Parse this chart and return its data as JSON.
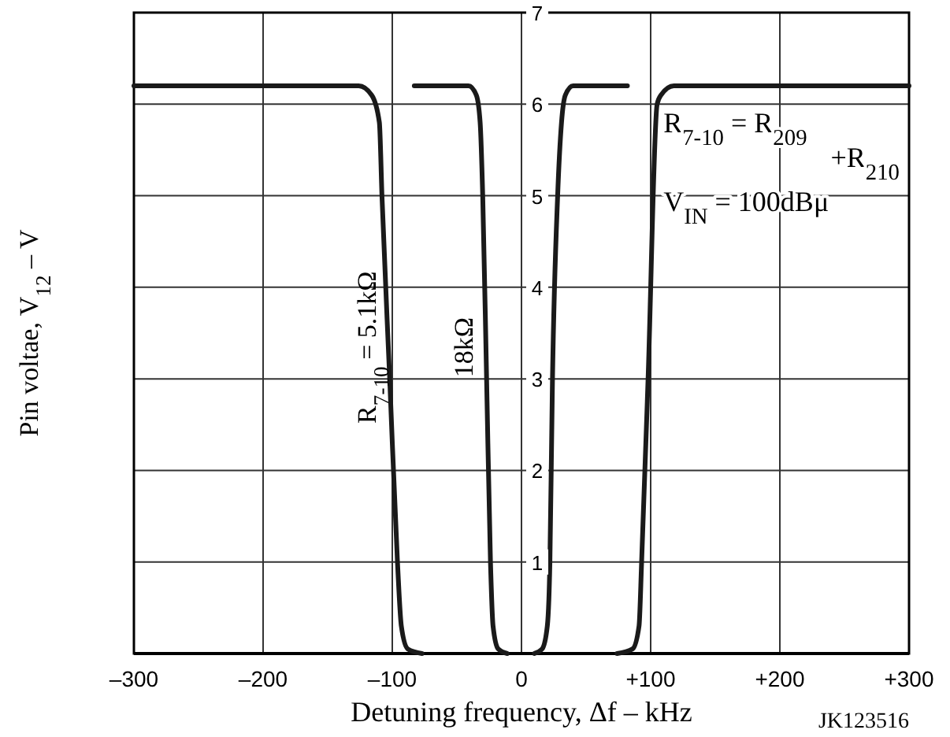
{
  "chart_data": {
    "type": "line",
    "xlabel": "Detuning frequency, Δf – kHz",
    "ylabel": "Pin voltae, V$_{12}$ – V",
    "x": [
      -300,
      -140,
      -126,
      -116,
      -110,
      -108,
      -102,
      -96,
      -93,
      -88,
      -77,
      0,
      74,
      86,
      91,
      93,
      98,
      105,
      108,
      118,
      130,
      300
    ],
    "series": [
      {
        "name": "R$_{7-10}$ = 5.1kΩ",
        "color": "#1a1a1a",
        "values": [
          6.2,
          6.2,
          6.2,
          6.1,
          5.8,
          5,
          3,
          1,
          0.3,
          0.05,
          0,
          null,
          0,
          0.05,
          0.3,
          1,
          3,
          6,
          6.1,
          6.2,
          6.2,
          6.2
        ]
      },
      {
        "name": "18kΩ",
        "color": "#1a1a1a",
        "x": [
          -83,
          -50,
          -41,
          -35,
          -32,
          -30,
          -27,
          -24,
          -22,
          -18,
          -11,
          0,
          10,
          16,
          20,
          22,
          24,
          28,
          31,
          34,
          40,
          82
        ],
        "values": [
          6.2,
          6.2,
          6.2,
          6.1,
          5.8,
          5,
          3,
          1,
          0.3,
          0.05,
          0,
          null,
          0,
          0.05,
          0.3,
          1,
          3,
          5,
          5.8,
          6.1,
          6.2,
          6.2
        ]
      }
    ],
    "xlim": [
      -300,
      300
    ],
    "ylim": [
      0,
      7
    ],
    "xticks": [
      {
        "value": -300,
        "label": "–300"
      },
      {
        "value": -200,
        "label": "–200"
      },
      {
        "value": -100,
        "label": "–100"
      },
      0,
      {
        "value": 100,
        "label": "+100"
      },
      {
        "value": 200,
        "label": "+200"
      },
      {
        "value": 300,
        "label": "+300"
      }
    ],
    "yticks": [
      1,
      2,
      3,
      4,
      5,
      6,
      7
    ],
    "grid": true,
    "marker": "none",
    "line_style": "solid",
    "annotations": [
      "R$_{7-10}$ = R$_{209}$",
      "+R$_{210}$",
      "V$_{IN}$ = 100dBμ",
      "JK123516"
    ]
  }
}
